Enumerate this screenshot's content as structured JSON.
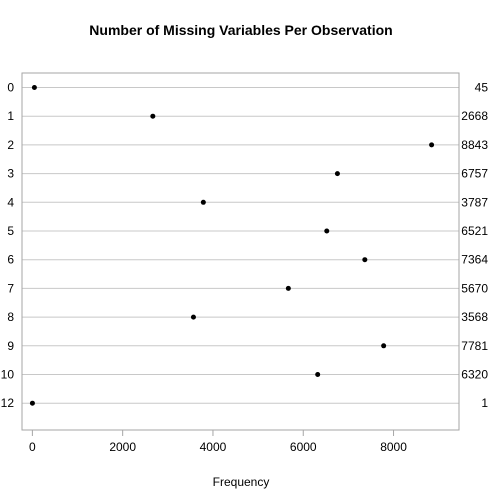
{
  "chart_data": {
    "type": "scatter",
    "title": "Number of Missing Variables Per Observation",
    "xlabel": "Frequency",
    "ylabel": "",
    "xlim": [
      -230,
      9450
    ],
    "x_ticks": [
      0,
      2000,
      4000,
      6000,
      8000
    ],
    "x_tick_labels": [
      "0",
      "2000",
      "4000",
      "6000",
      "8000"
    ],
    "categories": [
      "0",
      "1",
      "2",
      "3",
      "4",
      "5",
      "6",
      "7",
      "8",
      "9",
      "10",
      "12"
    ],
    "values": [
      45,
      2668,
      8843,
      6757,
      3787,
      6521,
      7364,
      5670,
      3568,
      7781,
      6320,
      1
    ],
    "value_labels": [
      "45",
      "2668",
      "8843",
      "6757",
      "3787",
      "6521",
      "7364",
      "5670",
      "3568",
      "7781",
      "6320",
      "1"
    ],
    "grid": "horizontal",
    "style": "dot plot with right-side value labels",
    "colors": {
      "point": "#000000",
      "grid": "#c8c8c8",
      "frame": "#a6a6a6",
      "text": "#000000"
    }
  }
}
